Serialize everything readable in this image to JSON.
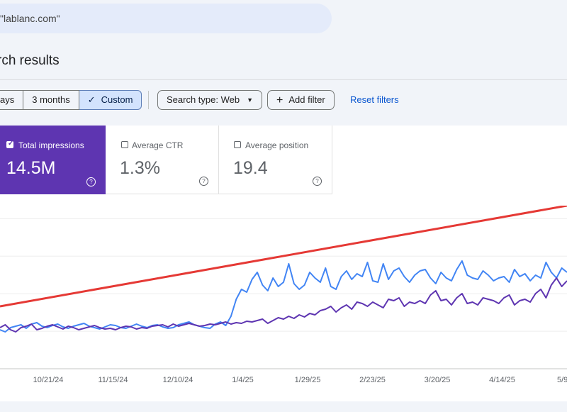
{
  "search": {
    "value": "\"lablanc.com\""
  },
  "page": {
    "title": "rch results"
  },
  "date_range": {
    "options": [
      {
        "label": "ays"
      },
      {
        "label": "3 months"
      },
      {
        "label": "Custom",
        "selected": true
      }
    ]
  },
  "filters": {
    "search_type": "Search type: Web",
    "add_filter": "Add filter",
    "reset": "Reset filters"
  },
  "metrics": [
    {
      "label": "Total impressions",
      "value": "14.5M",
      "checked": true
    },
    {
      "label": "Average CTR",
      "value": "1.3%",
      "checked": false
    },
    {
      "label": "Average position",
      "value": "19.4",
      "checked": false
    }
  ],
  "colors": {
    "accent": "#5e35b1",
    "impressions": "#5e35b1",
    "secondary_series": "#4285f4",
    "trend": "#e53935",
    "link": "#0b57d0"
  },
  "icons": {
    "check": "check-icon",
    "caret": "caret-down-icon",
    "plus": "plus-icon",
    "help": "help-circle-icon"
  },
  "chart_data": {
    "type": "line",
    "x_tick_labels": [
      "10/21/24",
      "11/15/24",
      "12/10/24",
      "1/4/25",
      "1/29/25",
      "2/23/25",
      "3/20/25",
      "4/14/25",
      "5/9/"
    ],
    "series": [
      {
        "key": "blue",
        "color": "#4285f4",
        "values": [
          55,
          52,
          58,
          60,
          62,
          57,
          63,
          65,
          60,
          58,
          61,
          63,
          59,
          57,
          60,
          62,
          64,
          60,
          58,
          56,
          59,
          62,
          61,
          58,
          57,
          60,
          63,
          60,
          58,
          61,
          62,
          59,
          57,
          58,
          62,
          64,
          66,
          62,
          60,
          58,
          57,
          63,
          66,
          61,
          74,
          98,
          112,
          108,
          126,
          136,
          118,
          110,
          128,
          116,
          122,
          148,
          120,
          112,
          118,
          136,
          128,
          122,
          142,
          116,
          112,
          130,
          138,
          126,
          134,
          130,
          150,
          124,
          122,
          148,
          126,
          138,
          142,
          130,
          122,
          132,
          138,
          140,
          128,
          120,
          136,
          128,
          124,
          140,
          152,
          132,
          128,
          126,
          138,
          132,
          124,
          128,
          130,
          122,
          140,
          130,
          134,
          124,
          132,
          128,
          150,
          136,
          128,
          142,
          136
        ]
      },
      {
        "key": "purple",
        "color": "#5e35b1",
        "values": [
          58,
          62,
          55,
          52,
          58,
          60,
          63,
          55,
          57,
          60,
          62,
          59,
          56,
          60,
          58,
          55,
          57,
          59,
          61,
          58,
          56,
          57,
          55,
          58,
          60,
          59,
          56,
          58,
          57,
          60,
          61,
          62,
          59,
          63,
          60,
          62,
          64,
          62,
          60,
          61,
          63,
          62,
          64,
          66,
          63,
          65,
          64,
          67,
          66,
          68,
          70,
          64,
          68,
          72,
          70,
          74,
          71,
          76,
          73,
          78,
          76,
          82,
          84,
          88,
          80,
          86,
          90,
          84,
          94,
          92,
          88,
          94,
          90,
          86,
          98,
          96,
          100,
          88,
          94,
          92,
          96,
          92,
          104,
          110,
          96,
          98,
          90,
          100,
          106,
          92,
          94,
          90,
          100,
          98,
          96,
          92,
          100,
          104,
          90,
          96,
          98,
          94,
          106,
          112,
          100,
          118,
          128,
          116,
          124
        ]
      }
    ],
    "trend_line": {
      "start": 88,
      "end": 230
    },
    "ylim": [
      0,
      230
    ],
    "grid": true
  }
}
